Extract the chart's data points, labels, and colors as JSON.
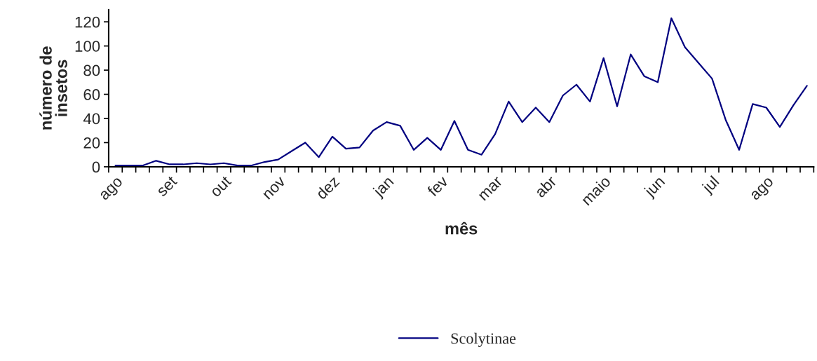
{
  "chart_data": {
    "type": "line",
    "xlabel": "mês",
    "ylabel": "número de\ninsetos",
    "categories": [
      "ago",
      null,
      null,
      null,
      "set",
      null,
      null,
      null,
      "out",
      null,
      null,
      null,
      "nov",
      null,
      null,
      null,
      "dez",
      null,
      null,
      null,
      "jan",
      null,
      null,
      null,
      "fev",
      null,
      null,
      null,
      "mar",
      null,
      null,
      null,
      "abr",
      null,
      null,
      null,
      "maio",
      null,
      null,
      null,
      "jun",
      null,
      null,
      null,
      "jul",
      null,
      null,
      null,
      "ago",
      null,
      null,
      null
    ],
    "series": [
      {
        "name": "Scolytinae",
        "color": "#000080",
        "values": [
          1,
          1,
          1,
          5,
          2,
          2,
          3,
          2,
          3,
          1,
          1,
          4,
          6,
          13,
          20,
          8,
          25,
          15,
          16,
          30,
          37,
          34,
          14,
          24,
          14,
          38,
          14,
          10,
          27,
          54,
          37,
          49,
          37,
          59,
          68,
          54,
          90,
          50,
          93,
          75,
          70,
          123,
          99,
          86,
          73,
          39,
          14,
          52,
          49,
          33,
          51,
          67
        ]
      }
    ],
    "ylim": [
      0,
      130
    ],
    "yticks": [
      0,
      20,
      40,
      60,
      80,
      100,
      120
    ],
    "grid": false,
    "legend": "bottom",
    "marker": "none",
    "line_style": "solid"
  }
}
